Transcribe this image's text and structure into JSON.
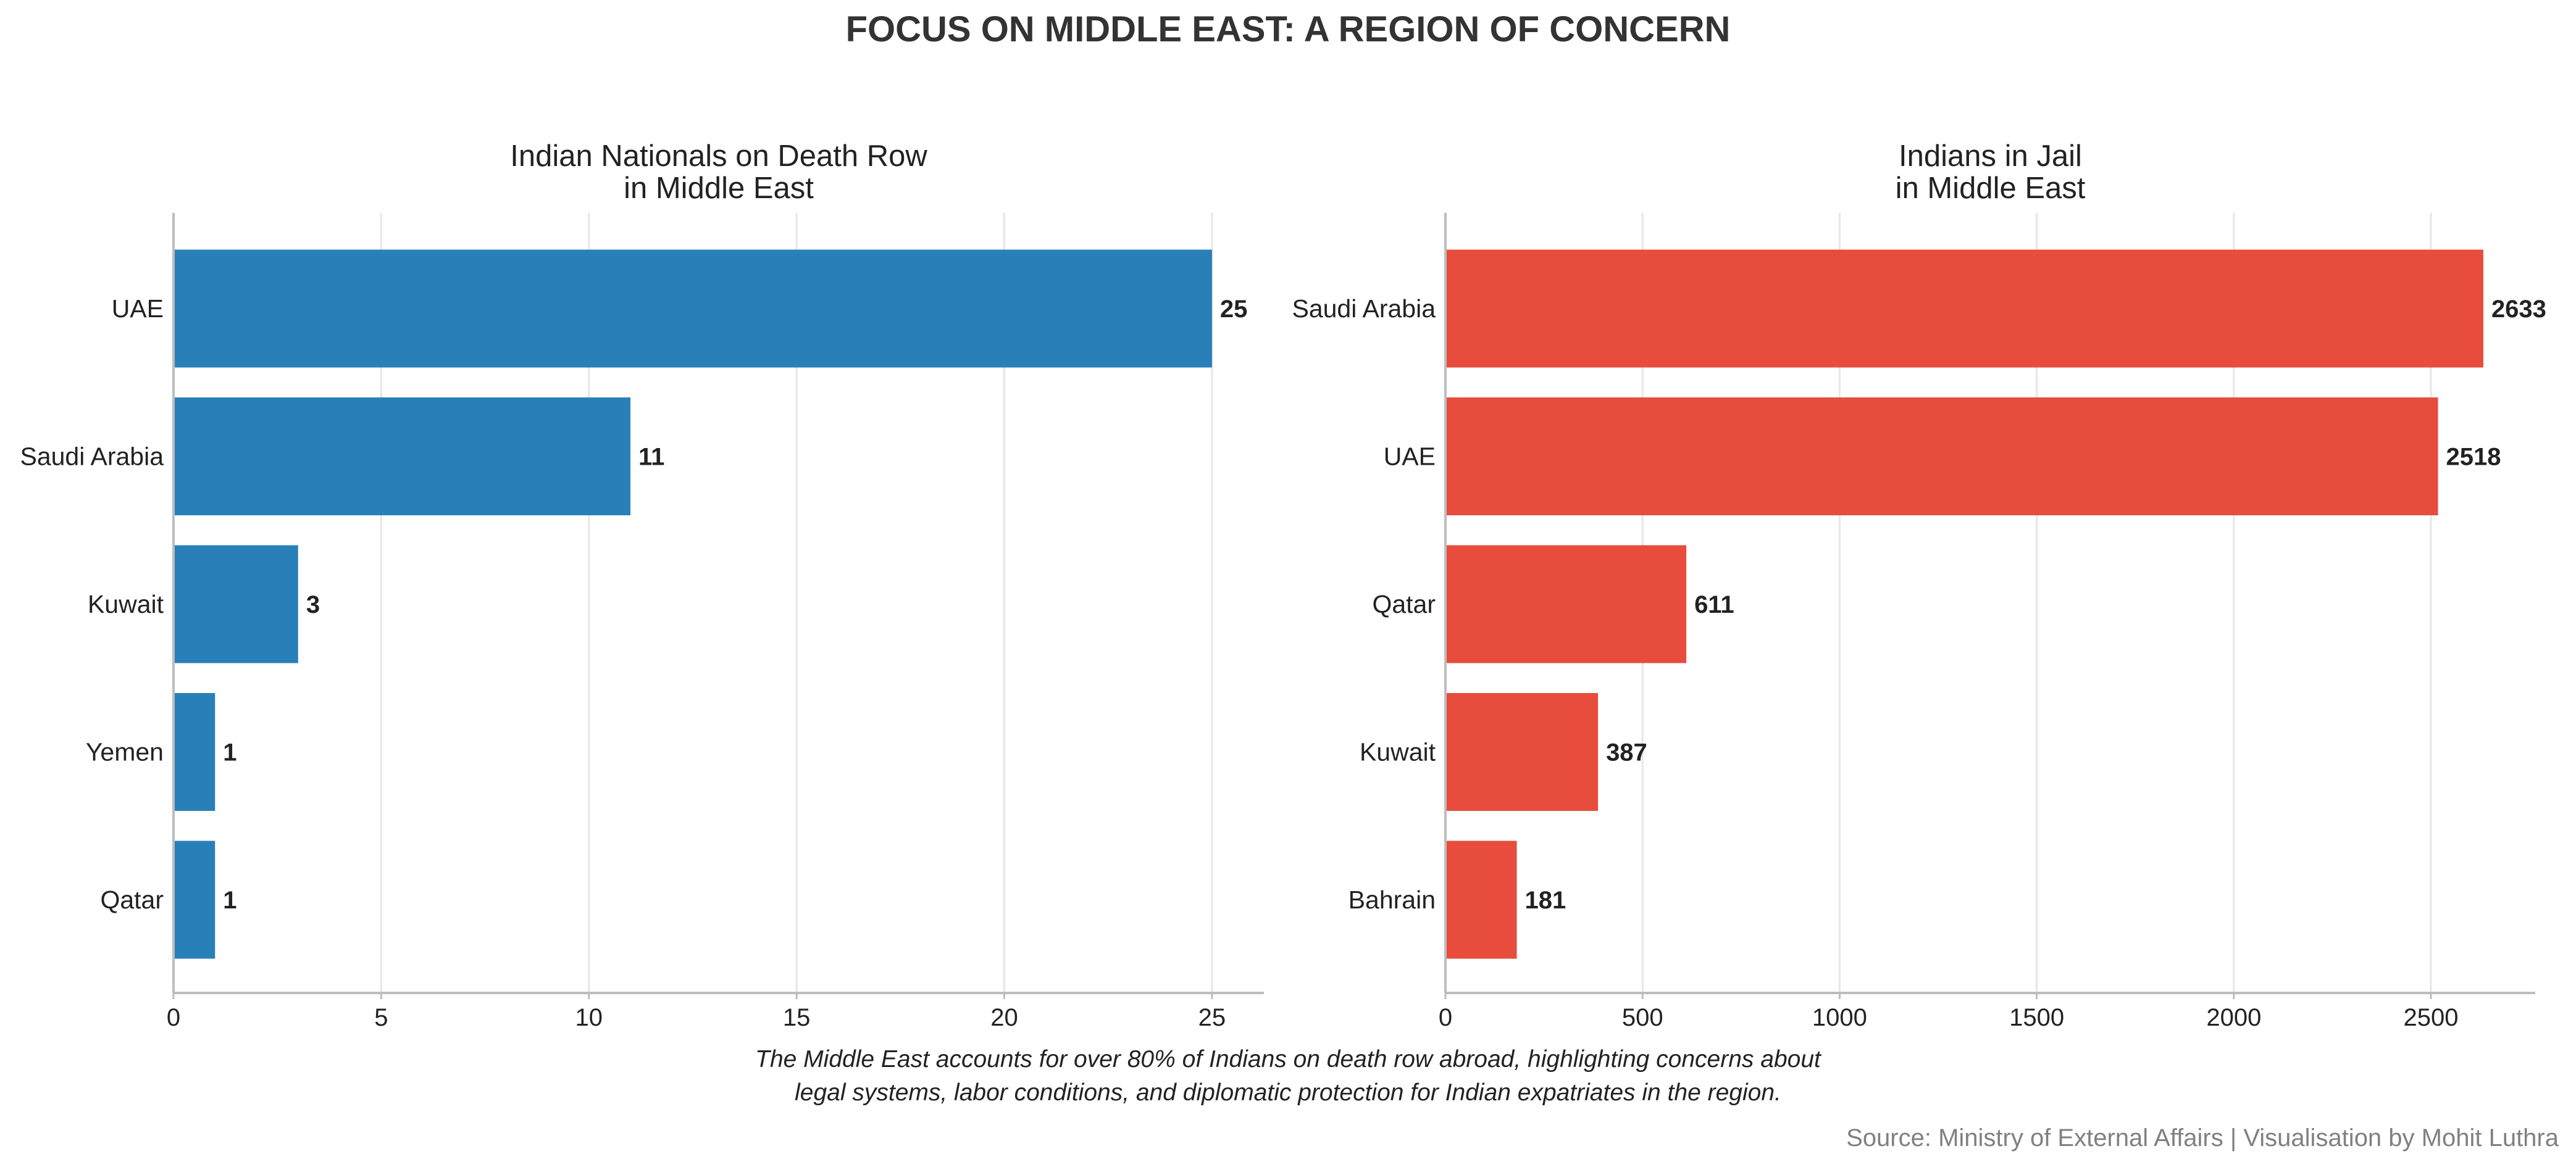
{
  "figure": {
    "title": "FOCUS ON MIDDLE EAST: A REGION OF CONCERN",
    "caption_lines": [
      "The Middle East accounts for over 80% of Indians on death row abroad, highlighting concerns about",
      "legal systems, labor conditions, and diplomatic protection for Indian expatriates in the region."
    ],
    "source": "Source: Ministry of External Affairs | Visualisation by Mohit Luthra"
  },
  "chart_data": [
    {
      "type": "bar",
      "orientation": "horizontal",
      "title_lines": [
        "Indian Nationals on Death Row",
        "in Middle East"
      ],
      "categories": [
        "UAE",
        "Saudi Arabia",
        "Kuwait",
        "Yemen",
        "Qatar"
      ],
      "values": [
        25,
        11,
        3,
        1,
        1
      ],
      "color": "#2980b9",
      "xlim": [
        0,
        26.25
      ],
      "xticks": [
        0,
        5,
        10,
        15,
        20,
        25
      ],
      "grid": "vertical",
      "legend": "none"
    },
    {
      "type": "bar",
      "orientation": "horizontal",
      "title_lines": [
        "Indians in Jail",
        "in Middle East"
      ],
      "categories": [
        "Saudi Arabia",
        "UAE",
        "Qatar",
        "Kuwait",
        "Bahrain"
      ],
      "values": [
        2633,
        2518,
        611,
        387,
        181
      ],
      "color": "#e74c3c",
      "xlim": [
        0,
        2764.65
      ],
      "xticks": [
        0,
        500,
        1000,
        1500,
        2000,
        2500
      ],
      "grid": "vertical",
      "legend": "none"
    }
  ]
}
